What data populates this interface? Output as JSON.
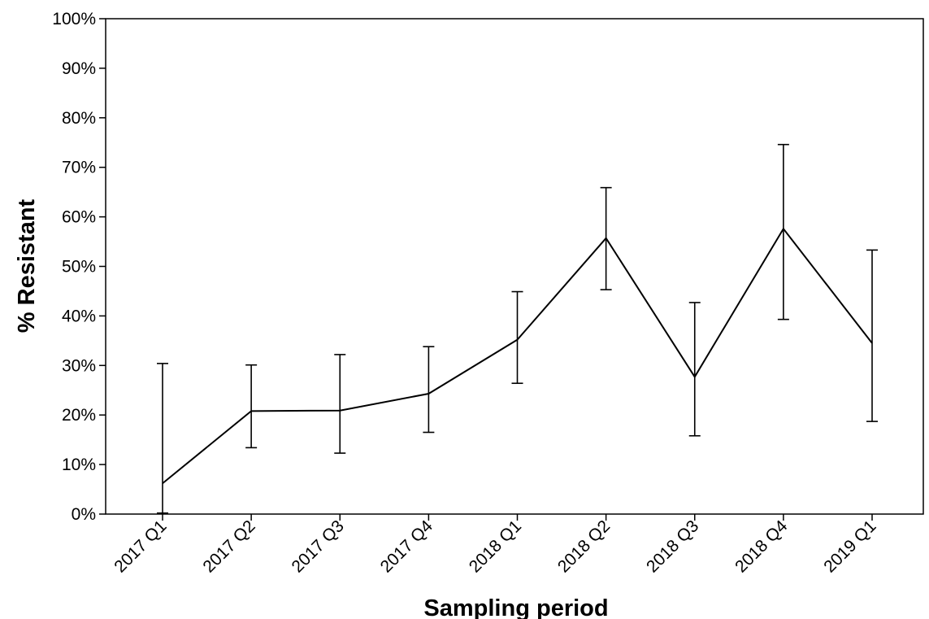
{
  "chart_data": {
    "type": "line",
    "title": "",
    "xlabel": "Sampling period",
    "ylabel": "% Resistant",
    "categories": [
      "2017 Q1",
      "2017 Q2",
      "2017 Q3",
      "2017 Q4",
      "2018 Q1",
      "2018 Q2",
      "2018 Q3",
      "2018 Q4",
      "2019 Q1"
    ],
    "series": [
      {
        "values": [
          6.2,
          20.8,
          20.9,
          24.3,
          35.2,
          55.7,
          27.7,
          57.6,
          34.5
        ],
        "error_low": [
          0.2,
          13.4,
          12.3,
          16.5,
          26.4,
          45.3,
          15.8,
          39.3,
          18.7
        ],
        "error_high": [
          30.4,
          30.1,
          32.2,
          33.8,
          44.9,
          65.9,
          42.7,
          74.6,
          53.3
        ]
      }
    ],
    "ylim": [
      0,
      100
    ],
    "yticks": [
      0,
      10,
      20,
      30,
      40,
      50,
      60,
      70,
      80,
      90,
      100
    ],
    "ytick_labels": [
      "0%",
      "10%",
      "20%",
      "30%",
      "40%",
      "50%",
      "60%",
      "70%",
      "80%",
      "90%",
      "100%"
    ],
    "grid": false,
    "legend": "none",
    "colors": {
      "line": "#000000",
      "axis": "#000000",
      "background": "#ffffff"
    }
  }
}
